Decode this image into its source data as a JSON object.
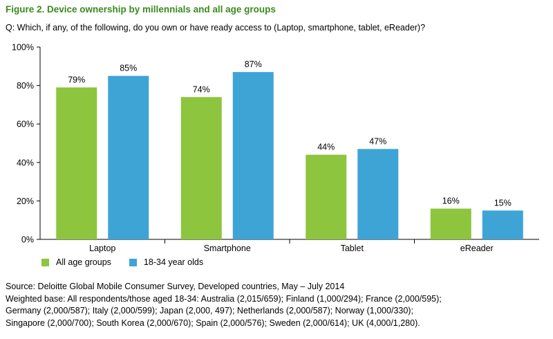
{
  "figure_title": "Figure 2. Device ownership by millennials and all age groups",
  "question": "Q: Which, if any, of the following, do you own or have ready access to (Laptop, smartphone, tablet, eReader)?",
  "colors": {
    "series_1": "#8dc53e",
    "series_2": "#3ea4d6",
    "title": "#3a8a1f"
  },
  "chart_data": {
    "type": "bar",
    "categories": [
      "Laptop",
      "Smartphone",
      "Tablet",
      "eReader"
    ],
    "series": [
      {
        "name": "All age groups",
        "values": [
          79,
          74,
          44,
          16
        ],
        "labels": [
          "79%",
          "74%",
          "44%",
          "16%"
        ]
      },
      {
        "name": "18-34 year olds",
        "values": [
          85,
          87,
          47,
          15
        ],
        "labels": [
          "85%",
          "87%",
          "47%",
          "15%"
        ]
      }
    ],
    "ylim": [
      0,
      100
    ],
    "yticks": [
      "0%",
      "20%",
      "40%",
      "60%",
      "80%",
      "100%"
    ],
    "ytick_values": [
      0,
      20,
      40,
      60,
      80,
      100
    ],
    "grid": false,
    "legend_position": "bottom-left"
  },
  "source": {
    "lines": [
      "Source: Deloitte Global Mobile Consumer Survey, Developed countries, May – July 2014",
      "Weighted base: All respondents/those aged 18-34: Australia (2,015/659); Finland (1,000/294); France (2,000/595);",
      "Germany (2,000/587); Italy (2,000/599); Japan (2,000, 497); Netherlands (2,000/587); Norway (1,000/330);",
      "Singapore (2,000/700); South Korea (2,000/670); Spain (2,000/576); Sweden (2,000/614); UK (4,000/1,280)."
    ]
  }
}
